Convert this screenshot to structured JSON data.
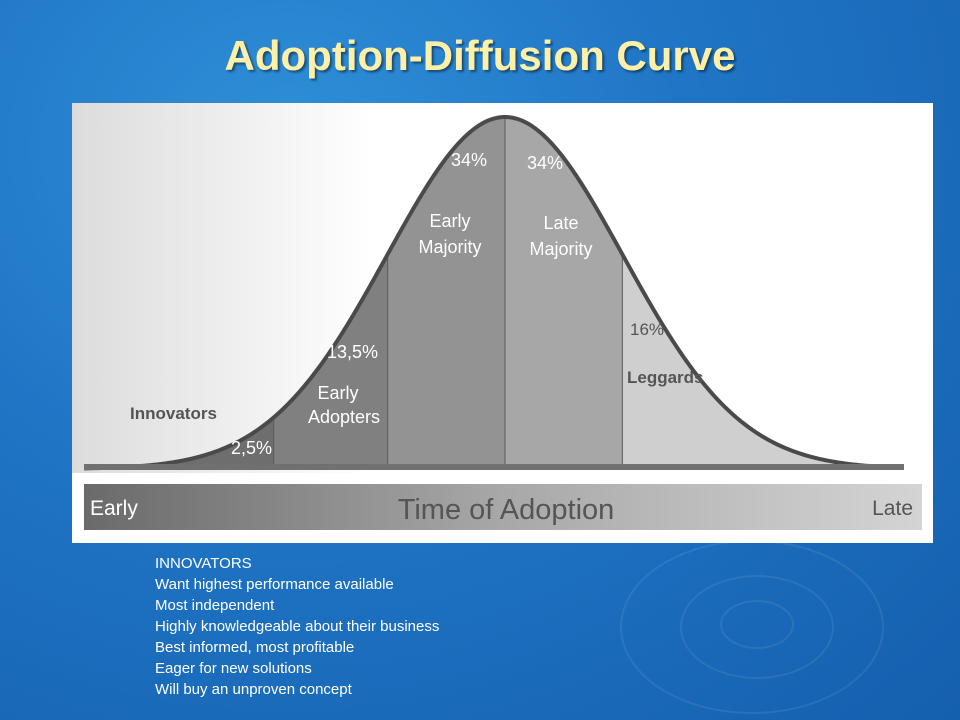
{
  "title": "Adoption-Diffusion Curve",
  "chart_data": {
    "type": "area",
    "title": "",
    "segments": [
      {
        "name": "Innovators",
        "percent_label": "2,5%",
        "value": 2.5,
        "color": "#6e6e6e"
      },
      {
        "name": "Early Adopters",
        "percent_label": "13,5%",
        "value": 13.5,
        "color": "#808080"
      },
      {
        "name": "Early Majority",
        "percent_label": "34%",
        "value": 34,
        "color": "#939393"
      },
      {
        "name": "Late Majority",
        "percent_label": "34%",
        "value": 34,
        "color": "#a7a7a7"
      },
      {
        "name": "Leggards",
        "percent_label": "16%",
        "value": 16,
        "color": "#cfcfcf"
      }
    ],
    "segment_labels": {
      "early_majority_line1": "Early",
      "early_majority_line2": "Majority",
      "late_majority_line1": "Late",
      "late_majority_line2": "Majority",
      "early_adopters_line1": "Early",
      "early_adopters_line2": "Adopters"
    },
    "axis": {
      "label": "Time of Adoption",
      "start": "Early",
      "end": "Late"
    }
  },
  "notes": [
    "INNOVATORS",
    "Want highest performance available",
    "Most independent",
    "Highly knowledgeable about their business",
    "Best informed, most profitable",
    "Eager for new solutions",
    "Will buy an unproven concept"
  ]
}
